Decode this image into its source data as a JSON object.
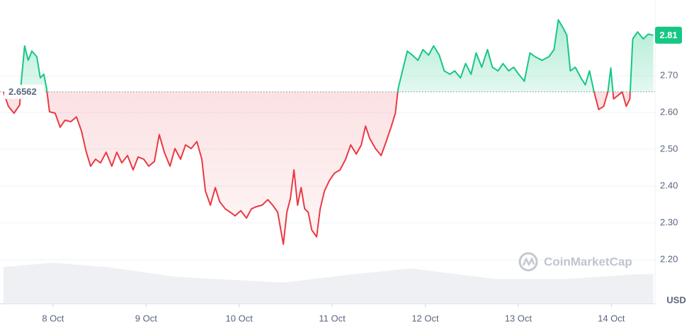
{
  "chart_data": {
    "type": "line",
    "x": [
      7.467,
      7.52,
      7.581,
      7.642,
      7.657,
      7.695,
      7.733,
      7.772,
      7.825,
      7.863,
      7.901,
      7.931,
      7.962,
      8.023,
      8.076,
      8.129,
      8.19,
      8.251,
      8.305,
      8.358,
      8.404,
      8.457,
      8.51,
      8.571,
      8.632,
      8.685,
      8.739,
      8.8,
      8.861,
      8.914,
      8.975,
      9.028,
      9.089,
      9.142,
      9.196,
      9.257,
      9.31,
      9.371,
      9.424,
      9.485,
      9.546,
      9.599,
      9.637,
      9.691,
      9.744,
      9.79,
      9.851,
      9.904,
      9.957,
      10.018,
      10.079,
      10.132,
      10.186,
      10.247,
      10.308,
      10.361,
      10.414,
      10.475,
      10.513,
      10.551,
      10.589,
      10.628,
      10.666,
      10.704,
      10.742,
      10.78,
      10.833,
      10.871,
      10.917,
      10.97,
      11.024,
      11.084,
      11.145,
      11.199,
      11.26,
      11.313,
      11.359,
      11.404,
      11.465,
      11.526,
      11.58,
      11.633,
      11.679,
      11.709,
      11.755,
      11.808,
      11.861,
      11.922,
      11.976,
      12.036,
      12.09,
      12.151,
      12.204,
      12.265,
      12.318,
      12.379,
      12.433,
      12.493,
      12.547,
      12.608,
      12.669,
      12.722,
      12.783,
      12.836,
      12.897,
      12.95,
      13.004,
      13.065,
      13.126,
      13.179,
      13.255,
      13.331,
      13.384,
      13.43,
      13.484,
      13.522,
      13.56,
      13.613,
      13.674,
      13.72,
      13.765,
      13.811,
      13.864,
      13.918,
      13.963,
      13.994,
      14.024,
      14.07,
      14.116,
      14.161,
      14.199,
      14.23,
      14.283,
      14.344,
      14.397,
      14.451
    ],
    "values": [
      2.656,
      2.617,
      2.598,
      2.621,
      2.679,
      2.781,
      2.742,
      2.767,
      2.752,
      2.694,
      2.704,
      2.665,
      2.602,
      2.598,
      2.56,
      2.579,
      2.575,
      2.588,
      2.55,
      2.492,
      2.454,
      2.473,
      2.463,
      2.492,
      2.454,
      2.492,
      2.463,
      2.483,
      2.444,
      2.479,
      2.473,
      2.454,
      2.467,
      2.54,
      2.492,
      2.454,
      2.502,
      2.473,
      2.512,
      2.502,
      2.521,
      2.473,
      2.387,
      2.348,
      2.396,
      2.358,
      2.338,
      2.329,
      2.319,
      2.333,
      2.313,
      2.338,
      2.344,
      2.348,
      2.363,
      2.348,
      2.329,
      2.242,
      2.329,
      2.367,
      2.444,
      2.348,
      2.396,
      2.338,
      2.329,
      2.281,
      2.262,
      2.338,
      2.387,
      2.415,
      2.435,
      2.444,
      2.473,
      2.512,
      2.487,
      2.512,
      2.563,
      2.529,
      2.502,
      2.483,
      2.521,
      2.56,
      2.598,
      2.665,
      2.713,
      2.767,
      2.756,
      2.742,
      2.771,
      2.756,
      2.781,
      2.756,
      2.713,
      2.704,
      2.713,
      2.694,
      2.733,
      2.704,
      2.762,
      2.723,
      2.771,
      2.723,
      2.713,
      2.733,
      2.713,
      2.723,
      2.704,
      2.685,
      2.762,
      2.752,
      2.742,
      2.752,
      2.771,
      2.852,
      2.829,
      2.81,
      2.713,
      2.723,
      2.694,
      2.675,
      2.713,
      2.66,
      2.608,
      2.617,
      2.656,
      2.721,
      2.637,
      2.646,
      2.656,
      2.617,
      2.637,
      2.8,
      2.819,
      2.8,
      2.813,
      2.81
    ],
    "baseline": 2.6562,
    "last_price_label": "2.81",
    "up_color": "#16c784",
    "down_color": "#ea3943",
    "xlim": [
      7.43,
      14.47
    ],
    "ylim": [
      2.08,
      2.9
    ],
    "yticks": [
      {
        "value": 2.2,
        "label": "2.20"
      },
      {
        "value": 2.3,
        "label": "2.30"
      },
      {
        "value": 2.4,
        "label": "2.40"
      },
      {
        "value": 2.5,
        "label": "2.50"
      },
      {
        "value": 2.6,
        "label": "2.60"
      },
      {
        "value": 2.7,
        "label": "2.70"
      }
    ],
    "xticks": [
      {
        "value": 8,
        "label": "8 Oct"
      },
      {
        "value": 9,
        "label": "9 Oct"
      },
      {
        "value": 10,
        "label": "10 Oct"
      },
      {
        "value": 11,
        "label": "11 Oct"
      },
      {
        "value": 12,
        "label": "12 Oct"
      },
      {
        "value": 13,
        "label": "13 Oct"
      },
      {
        "value": 14,
        "label": "14 Oct"
      }
    ],
    "y_unit": "USD",
    "watermark": "CoinMarketCap",
    "volume": {
      "x": [
        7.467,
        8.0,
        8.571,
        9.333,
        10.475,
        11.237,
        11.846,
        12.76,
        13.522,
        14.283,
        14.451
      ],
      "values": [
        52,
        58,
        52,
        38,
        30,
        42,
        50,
        35,
        35,
        42,
        42
      ]
    },
    "grid": true
  }
}
